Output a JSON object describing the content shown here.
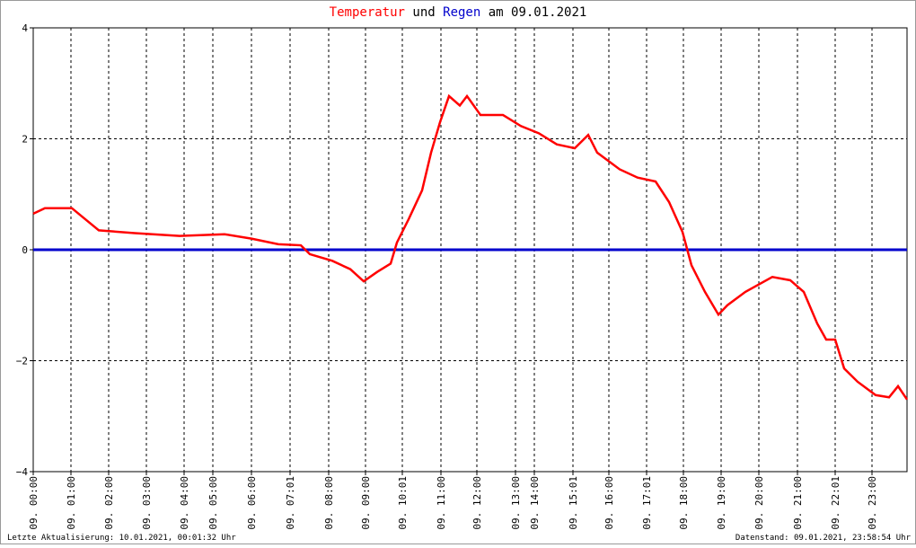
{
  "chart_data": {
    "type": "line",
    "title": [
      "Temperatur",
      "und",
      "Regen",
      "am 09.01.2021"
    ],
    "footer_left": "Letzte Aktualisierung: 10.01.2021, 00:01:32 Uhr",
    "footer_right": "Datenstand: 09.01.2021, 23:58:54 Uhr",
    "xlim": [
      0,
      973
    ],
    "xticks": [
      {
        "value": 0,
        "label": "09. 00:00"
      },
      {
        "value": 42,
        "label": "09. 01:00"
      },
      {
        "value": 84,
        "label": "09. 02:00"
      },
      {
        "value": 126,
        "label": "09. 03:00"
      },
      {
        "value": 168,
        "label": "09. 04:00"
      },
      {
        "value": 200,
        "label": "09. 05:00"
      },
      {
        "value": 243,
        "label": "09. 06:00"
      },
      {
        "value": 286,
        "label": "09. 07:01"
      },
      {
        "value": 329,
        "label": "09. 08:00"
      },
      {
        "value": 370,
        "label": "09. 09:00"
      },
      {
        "value": 411,
        "label": "09. 10:01"
      },
      {
        "value": 454,
        "label": "09. 11:00"
      },
      {
        "value": 494,
        "label": "09. 12:00"
      },
      {
        "value": 537,
        "label": "09. 13:00"
      },
      {
        "value": 558,
        "label": "09. 14:00"
      },
      {
        "value": 601,
        "label": "09. 15:01"
      },
      {
        "value": 641,
        "label": "09. 16:00"
      },
      {
        "value": 683,
        "label": "09. 17:01"
      },
      {
        "value": 724,
        "label": "09. 18:00"
      },
      {
        "value": 766,
        "label": "09. 19:00"
      },
      {
        "value": 808,
        "label": "09. 20:00"
      },
      {
        "value": 851,
        "label": "09. 21:00"
      },
      {
        "value": 893,
        "label": "09. 22:01"
      },
      {
        "value": 934,
        "label": "09. 23:00"
      }
    ],
    "ylim": [
      -4,
      4
    ],
    "yticks": [
      {
        "value": -4,
        "label": "−4"
      },
      {
        "value": -2,
        "label": "−2"
      },
      0,
      2,
      4
    ],
    "grid": true,
    "series": [
      {
        "name": "Temperatur",
        "color": "#ff0000",
        "x": [
          0,
          13,
          43,
          58,
          73,
          113,
          163,
          213,
          243,
          273,
          298,
          308,
          333,
          353,
          368,
          383,
          398,
          405,
          418,
          433,
          443,
          453,
          463,
          475,
          483,
          498,
          523,
          543,
          563,
          583,
          603,
          618,
          628,
          653,
          673,
          693,
          708,
          723,
          733,
          748,
          763,
          773,
          793,
          823,
          843,
          858,
          873,
          883,
          893,
          903,
          918,
          938,
          953,
          963,
          973
        ],
        "values": [
          0.65,
          0.75,
          0.75,
          0.55,
          0.35,
          0.3,
          0.25,
          0.28,
          0.2,
          0.1,
          0.08,
          -0.08,
          -0.2,
          -0.35,
          -0.57,
          -0.4,
          -0.25,
          0.13,
          0.55,
          1.07,
          1.75,
          2.3,
          2.77,
          2.6,
          2.77,
          2.43,
          2.43,
          2.23,
          2.1,
          1.9,
          1.83,
          2.07,
          1.75,
          1.45,
          1.3,
          1.23,
          0.86,
          0.32,
          -0.28,
          -0.76,
          -1.17,
          -1.0,
          -0.76,
          -0.49,
          -0.55,
          -0.76,
          -1.33,
          -1.62,
          -1.62,
          -2.14,
          -2.38,
          -2.62,
          -2.66,
          -2.46,
          -2.7
        ]
      },
      {
        "name": "Regen",
        "color": "#0000cc",
        "x": [
          0,
          973
        ],
        "values": [
          0,
          0
        ]
      }
    ]
  }
}
